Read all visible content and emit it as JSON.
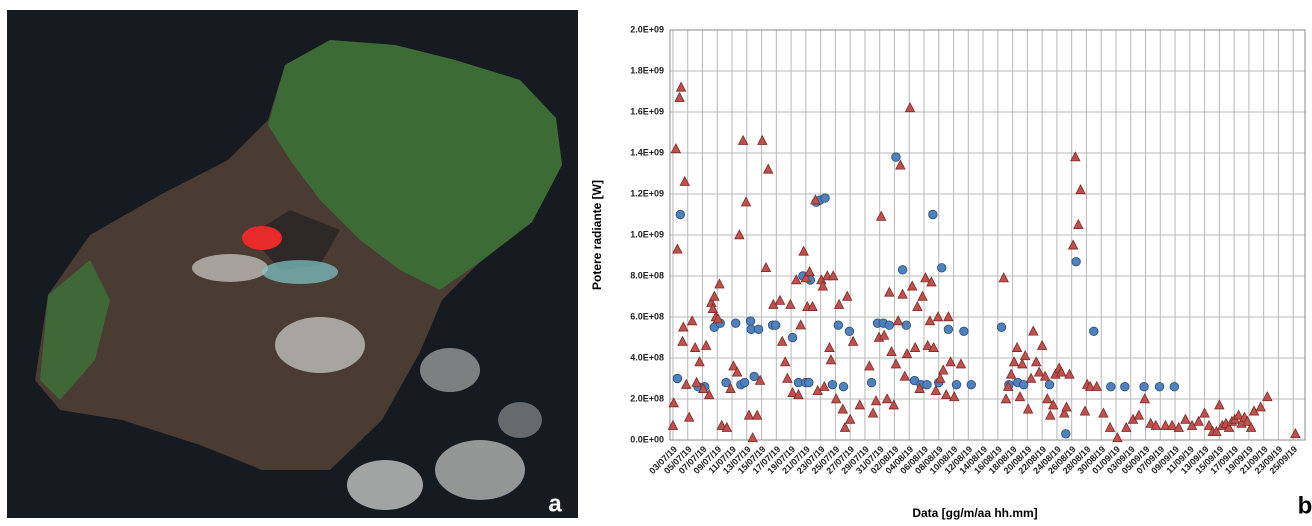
{
  "panel_labels": [
    "a",
    "b"
  ],
  "chart_data": {
    "type": "scatter",
    "ylabel": "Potere radiante [W]",
    "xlabel": "Data [gg/m/aa hh.mm]",
    "grid": true,
    "xlim": [
      -0.4,
      85.6
    ],
    "ylim": [
      0,
      2000000000.0
    ],
    "yticks": [
      {
        "value": 0,
        "label": "0.0E+00"
      },
      {
        "value": 200000000.0,
        "label": "2.0E+08"
      },
      {
        "value": 400000000.0,
        "label": "4.0E+08"
      },
      {
        "value": 600000000.0,
        "label": "6.0E+08"
      },
      {
        "value": 800000000.0,
        "label": "8.0E+08"
      },
      {
        "value": 1000000000.0,
        "label": "1.0E+09"
      },
      {
        "value": 1200000000.0,
        "label": "1.2E+09"
      },
      {
        "value": 1400000000.0,
        "label": "1.4E+09"
      },
      {
        "value": 1600000000.0,
        "label": "1.6E+09"
      },
      {
        "value": 1800000000.0,
        "label": "1.8E+09"
      },
      {
        "value": 2000000000.0,
        "label": "2.0E+09"
      }
    ],
    "xticks": [
      {
        "value": 0,
        "label": "03/07/19"
      },
      {
        "value": 2,
        "label": "05/07/19"
      },
      {
        "value": 4,
        "label": "07/07/19"
      },
      {
        "value": 6,
        "label": "09/07/19"
      },
      {
        "value": 8,
        "label": "11/07/19"
      },
      {
        "value": 10,
        "label": "13/07/19"
      },
      {
        "value": 12,
        "label": "15/07/19"
      },
      {
        "value": 14,
        "label": "17/07/19"
      },
      {
        "value": 16,
        "label": "19/07/19"
      },
      {
        "value": 18,
        "label": "21/07/19"
      },
      {
        "value": 20,
        "label": "23/07/19"
      },
      {
        "value": 22,
        "label": "25/07/19"
      },
      {
        "value": 24,
        "label": "27/07/19"
      },
      {
        "value": 26,
        "label": "29/07/19"
      },
      {
        "value": 28,
        "label": "31/07/19"
      },
      {
        "value": 30,
        "label": "02/08/19"
      },
      {
        "value": 32,
        "label": "04/08/19"
      },
      {
        "value": 34,
        "label": "06/08/19"
      },
      {
        "value": 36,
        "label": "08/08/19"
      },
      {
        "value": 38,
        "label": "10/08/19"
      },
      {
        "value": 40,
        "label": "12/08/19"
      },
      {
        "value": 42,
        "label": "14/08/19"
      },
      {
        "value": 44,
        "label": "16/08/19"
      },
      {
        "value": 46,
        "label": "18/08/19"
      },
      {
        "value": 48,
        "label": "20/08/19"
      },
      {
        "value": 50,
        "label": "22/08/19"
      },
      {
        "value": 52,
        "label": "24/08/19"
      },
      {
        "value": 54,
        "label": "26/08/19"
      },
      {
        "value": 56,
        "label": "28/08/19"
      },
      {
        "value": 58,
        "label": "30/08/19"
      },
      {
        "value": 60,
        "label": "01/09/19"
      },
      {
        "value": 62,
        "label": "03/09/19"
      },
      {
        "value": 64,
        "label": "05/09/19"
      },
      {
        "value": 66,
        "label": "07/09/19"
      },
      {
        "value": 68,
        "label": "09/09/19"
      },
      {
        "value": 70,
        "label": "11/09/19"
      },
      {
        "value": 72,
        "label": "13/09/19"
      },
      {
        "value": 74,
        "label": "15/09/19"
      },
      {
        "value": 76,
        "label": "17/09/19"
      },
      {
        "value": 78,
        "label": "19/09/19"
      },
      {
        "value": 80,
        "label": "21/09/19"
      },
      {
        "value": 82,
        "label": "23/09/19"
      },
      {
        "value": 84,
        "label": "25/09/19"
      }
    ],
    "series": [
      {
        "color": "#4f81bd",
        "marker": "circle",
        "x": [
          0.6,
          1.0,
          3.4,
          4.3,
          5.6,
          6.4,
          7.2,
          8.5,
          9.2,
          9.7,
          10.5,
          10.6,
          11.0,
          11.6,
          13.5,
          13.9,
          16.2,
          17.0,
          17.6,
          18.0,
          18.4,
          18.6,
          19.4,
          19.9,
          20.6,
          21.6,
          22.4,
          23.1,
          23.9,
          26.9,
          27.7,
          28.5,
          29.3,
          30.2,
          31.1,
          31.6,
          32.7,
          33.6,
          34.4,
          35.2,
          36.0,
          36.4,
          37.3,
          38.4,
          39.4,
          40.4,
          44.5,
          45.5,
          46.7,
          47.5,
          51.0,
          53.2,
          54.6,
          57.0,
          59.3,
          61.2,
          63.8,
          65.9,
          67.9
        ],
        "values": [
          300000000.0,
          1100000000.0,
          260000000.0,
          260000000.0,
          550000000.0,
          570000000.0,
          280000000.0,
          570000000.0,
          270000000.0,
          280000000.0,
          580000000.0,
          540000000.0,
          310000000.0,
          540000000.0,
          560000000.0,
          560000000.0,
          500000000.0,
          280000000.0,
          800000000.0,
          280000000.0,
          280000000.0,
          780000000.0,
          1160000000.0,
          1170000000.0,
          1180000000.0,
          270000000.0,
          560000000.0,
          260000000.0,
          530000000.0,
          280000000.0,
          570000000.0,
          570000000.0,
          560000000.0,
          1380000000.0,
          830000000.0,
          560000000.0,
          290000000.0,
          270000000.0,
          270000000.0,
          1100000000.0,
          280000000.0,
          840000000.0,
          540000000.0,
          270000000.0,
          530000000.0,
          270000000.0,
          550000000.0,
          270000000.0,
          280000000.0,
          270000000.0,
          270000000.0,
          30000000.0,
          870000000.0,
          530000000.0,
          260000000.0,
          260000000.0,
          260000000.0,
          260000000.0,
          260000000.0
        ]
      },
      {
        "color": "#c0504d",
        "marker": "triangle",
        "x": [
          0.0,
          0.1,
          0.4,
          0.6,
          0.9,
          1.1,
          1.4,
          1.6,
          1.3,
          1.8,
          2.2,
          2.6,
          3.0,
          3.2,
          3.6,
          4.1,
          4.5,
          4.9,
          5.2,
          5.4,
          5.6,
          5.8,
          6.1,
          6.3,
          6.6,
          7.3,
          7.8,
          8.2,
          8.7,
          9.0,
          9.5,
          9.9,
          10.3,
          10.8,
          11.4,
          11.8,
          12.1,
          12.6,
          12.9,
          13.6,
          14.5,
          14.8,
          15.2,
          15.5,
          15.9,
          16.2,
          16.7,
          17.0,
          17.3,
          17.7,
          18.0,
          18.2,
          18.5,
          18.9,
          19.3,
          19.6,
          20.1,
          20.3,
          20.5,
          20.9,
          21.2,
          21.4,
          21.7,
          22.1,
          22.5,
          23.0,
          23.3,
          23.6,
          24.0,
          24.4,
          25.3,
          26.6,
          27.1,
          27.5,
          27.9,
          28.2,
          28.6,
          29.0,
          29.3,
          29.6,
          29.9,
          30.2,
          30.5,
          30.8,
          31.1,
          31.4,
          31.7,
          32.1,
          32.4,
          32.8,
          33.1,
          33.4,
          33.8,
          34.2,
          34.5,
          34.8,
          35.0,
          35.3,
          35.6,
          35.9,
          36.2,
          36.6,
          37.0,
          37.3,
          37.6,
          38.1,
          39.0,
          44.8,
          45.1,
          45.4,
          45.8,
          46.2,
          46.6,
          47.0,
          47.3,
          47.7,
          48.1,
          48.5,
          48.8,
          49.2,
          49.6,
          50.0,
          50.4,
          50.7,
          51.1,
          51.5,
          51.8,
          52.3,
          52.6,
          53.0,
          53.3,
          53.7,
          54.2,
          54.5,
          54.9,
          55.2,
          55.8,
          56.1,
          56.5,
          57.4,
          58.3,
          59.2,
          60.2,
          61.4,
          62.3,
          63.1,
          63.9,
          64.7,
          65.4,
          66.7,
          67.6,
          68.5,
          69.4,
          70.3,
          71.2,
          72.0,
          72.6,
          73.1,
          73.6,
          74.0,
          74.4,
          74.9,
          75.3,
          75.7,
          76.1,
          76.6,
          77.0,
          77.4,
          77.8,
          78.3,
          78.7,
          79.6,
          80.5,
          84.3
        ],
        "values": [
          70000000.0,
          180000000.0,
          1420000000.0,
          930000000.0,
          1670000000.0,
          1720000000.0,
          550000000.0,
          1260000000.0,
          480000000.0,
          270000000.0,
          110000000.0,
          580000000.0,
          450000000.0,
          280000000.0,
          380000000.0,
          250000000.0,
          460000000.0,
          220000000.0,
          670000000.0,
          640000000.0,
          700000000.0,
          600000000.0,
          590000000.0,
          760000000.0,
          70000000.0,
          60000000.0,
          250000000.0,
          360000000.0,
          330000000.0,
          1000000000.0,
          1460000000.0,
          1160000000.0,
          120000000.0,
          10000000.0,
          120000000.0,
          290000000.0,
          1460000000.0,
          840000000.0,
          1320000000.0,
          660000000.0,
          680000000.0,
          480000000.0,
          380000000.0,
          300000000.0,
          660000000.0,
          230000000.0,
          780000000.0,
          220000000.0,
          560000000.0,
          920000000.0,
          790000000.0,
          650000000.0,
          820000000.0,
          650000000.0,
          1170000000.0,
          240000000.0,
          780000000.0,
          750000000.0,
          260000000.0,
          800000000.0,
          450000000.0,
          390000000.0,
          800000000.0,
          200000000.0,
          660000000.0,
          150000000.0,
          60000000.0,
          700000000.0,
          100000000.0,
          480000000.0,
          170000000.0,
          360000000.0,
          130000000.0,
          190000000.0,
          500000000.0,
          1090000000.0,
          510000000.0,
          200000000.0,
          720000000.0,
          430000000.0,
          170000000.0,
          370000000.0,
          580000000.0,
          1340000000.0,
          710000000.0,
          310000000.0,
          420000000.0,
          1620000000.0,
          750000000.0,
          450000000.0,
          650000000.0,
          250000000.0,
          700000000.0,
          790000000.0,
          460000000.0,
          580000000.0,
          770000000.0,
          450000000.0,
          240000000.0,
          600000000.0,
          300000000.0,
          340000000.0,
          220000000.0,
          600000000.0,
          380000000.0,
          210000000.0,
          370000000.0,
          790000000.0,
          200000000.0,
          260000000.0,
          320000000.0,
          380000000.0,
          450000000.0,
          210000000.0,
          370000000.0,
          410000000.0,
          150000000.0,
          300000000.0,
          530000000.0,
          380000000.0,
          330000000.0,
          460000000.0,
          310000000.0,
          200000000.0,
          120000000.0,
          170000000.0,
          320000000.0,
          350000000.0,
          330000000.0,
          130000000.0,
          160000000.0,
          320000000.0,
          950000000.0,
          1380000000.0,
          1050000000.0,
          1220000000.0,
          140000000.0,
          270000000.0,
          260000000.0,
          260000000.0,
          130000000.0,
          60000000.0,
          10000000.0,
          60000000.0,
          100000000.0,
          120000000.0,
          200000000.0,
          80000000.0,
          70000000.0,
          70000000.0,
          70000000.0,
          60000000.0,
          100000000.0,
          70000000.0,
          90000000.0,
          130000000.0,
          70000000.0,
          40000000.0,
          40000000.0,
          170000000.0,
          70000000.0,
          80000000.0,
          60000000.0,
          90000000.0,
          100000000.0,
          120000000.0,
          80000000.0,
          110000000.0,
          90000000.0,
          60000000.0,
          140000000.0,
          160000000.0,
          210000000.0,
          30000000.0
        ]
      }
    ]
  }
}
